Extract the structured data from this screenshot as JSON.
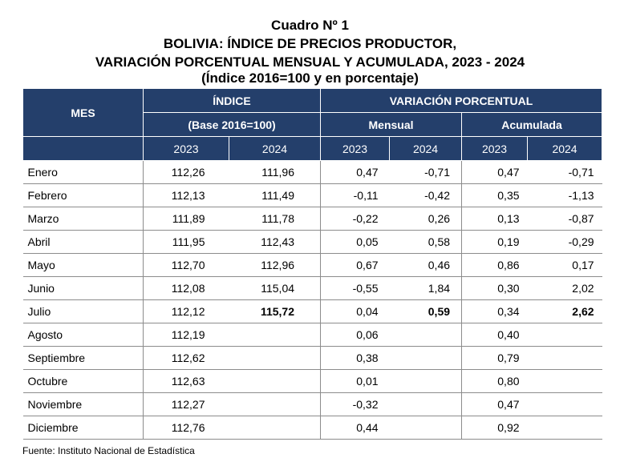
{
  "title": {
    "line1": "Cuadro Nº 1",
    "line2": "BOLIVIA: ÍNDICE DE PRECIOS PRODUCTOR,",
    "line3": "VARIACIÓN PORCENTUAL MENSUAL Y ACUMULADA, 2023 - 2024",
    "line4": "(Índice 2016=100 y en porcentaje)"
  },
  "header": {
    "mes": "MES",
    "indice": "ÍNDICE",
    "variacion": "VARIACIÓN PORCENTUAL",
    "base": "(Base 2016=100)",
    "mensual": "Mensual",
    "acumulada": "Acumulada",
    "years": [
      "2023",
      "2024",
      "2023",
      "2024",
      "2023",
      "2024"
    ]
  },
  "rows": [
    {
      "mes": "Enero",
      "i23": "112,26",
      "i24": "111,96",
      "m23": "0,47",
      "m24": "-0,71",
      "a23": "0,47",
      "a24": "-0,71"
    },
    {
      "mes": "Febrero",
      "i23": "112,13",
      "i24": "111,49",
      "m23": "-0,11",
      "m24": "-0,42",
      "a23": "0,35",
      "a24": "-1,13"
    },
    {
      "mes": "Marzo",
      "i23": "111,89",
      "i24": "111,78",
      "m23": "-0,22",
      "m24": "0,26",
      "a23": "0,13",
      "a24": "-0,87"
    },
    {
      "mes": "Abril",
      "i23": "111,95",
      "i24": "112,43",
      "m23": "0,05",
      "m24": "0,58",
      "a23": "0,19",
      "a24": "-0,29"
    },
    {
      "mes": "Mayo",
      "i23": "112,70",
      "i24": "112,96",
      "m23": "0,67",
      "m24": "0,46",
      "a23": "0,86",
      "a24": "0,17"
    },
    {
      "mes": "Junio",
      "i23": "112,08",
      "i24": "115,04",
      "m23": "-0,55",
      "m24": "1,84",
      "a23": "0,30",
      "a24": "2,02"
    },
    {
      "mes": "Julio",
      "i23": "112,12",
      "i24": "115,72",
      "m23": "0,04",
      "m24": "0,59",
      "a23": "0,34",
      "a24": "2,62"
    },
    {
      "mes": "Agosto",
      "i23": "112,19",
      "i24": "",
      "m23": "0,06",
      "m24": "",
      "a23": "0,40",
      "a24": ""
    },
    {
      "mes": "Septiembre",
      "i23": "112,62",
      "i24": "",
      "m23": "0,38",
      "m24": "",
      "a23": "0,79",
      "a24": ""
    },
    {
      "mes": "Octubre",
      "i23": "112,63",
      "i24": "",
      "m23": "0,01",
      "m24": "",
      "a23": "0,80",
      "a24": ""
    },
    {
      "mes": "Noviembre",
      "i23": "112,27",
      "i24": "",
      "m23": "-0,32",
      "m24": "",
      "a23": "0,47",
      "a24": ""
    },
    {
      "mes": "Diciembre",
      "i23": "112,76",
      "i24": "",
      "m23": "0,44",
      "m24": "",
      "a23": "0,92",
      "a24": ""
    }
  ],
  "source": "Fuente: Instituto Nacional de Estadística",
  "colors": {
    "header_bg": "#243f6b",
    "header_text": "#ffffff"
  }
}
